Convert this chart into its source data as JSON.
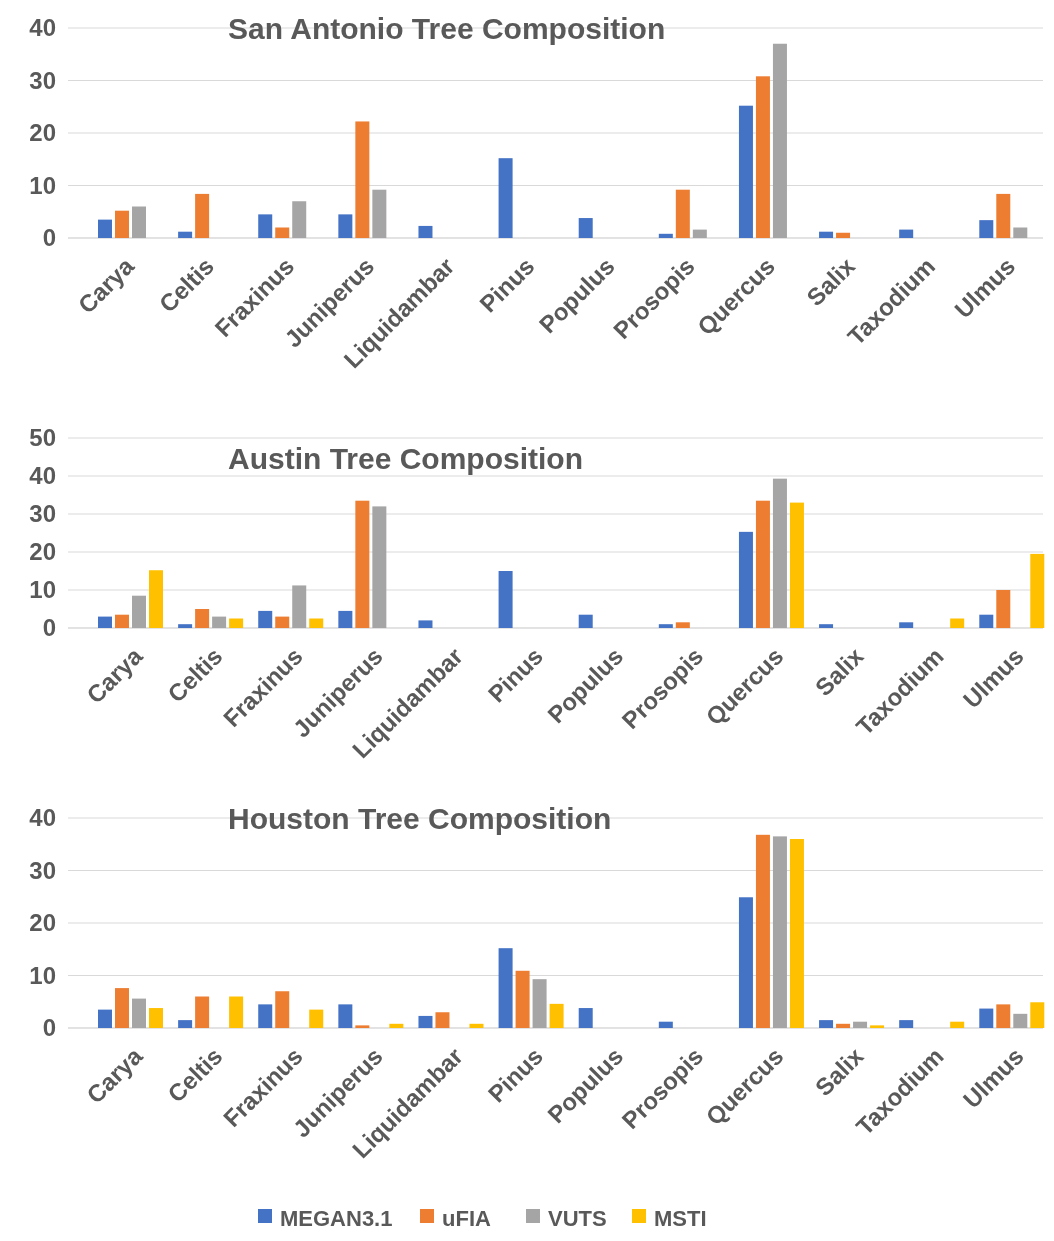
{
  "chart_data": [
    {
      "type": "bar",
      "title": "San Antonio Tree Composition",
      "categories": [
        "Carya",
        "Celtis",
        "Fraxinus",
        "Juniperus",
        "Liquidambar",
        "Pinus",
        "Populus",
        "Prosopis",
        "Quercus",
        "Salix",
        "Taxodium",
        "Ulmus"
      ],
      "ylim": [
        0,
        40
      ],
      "yticks": [
        0,
        10,
        20,
        30,
        40
      ],
      "grid": "y",
      "legend": false,
      "series": [
        {
          "color": "#4472c4",
          "values": [
            3.5,
            1.2,
            4.5,
            4.5,
            2.3,
            15.2,
            3.8,
            0.8,
            25.2,
            1.2,
            1.6,
            3.4
          ]
        },
        {
          "color": "#ed7d31",
          "values": [
            5.2,
            8.4,
            2,
            22.2,
            null,
            null,
            null,
            9.2,
            30.8,
            1,
            null,
            8.4
          ]
        },
        {
          "color": "#a5a5a5",
          "values": [
            6,
            null,
            7,
            9.2,
            null,
            null,
            null,
            1.6,
            37,
            null,
            null,
            2
          ]
        }
      ]
    },
    {
      "type": "bar",
      "title": "Austin Tree Composition",
      "categories": [
        "Carya",
        "Celtis",
        "Fraxinus",
        "Juniperus",
        "Liquidambar",
        "Pinus",
        "Populus",
        "Prosopis",
        "Quercus",
        "Salix",
        "Taxodium",
        "Ulmus"
      ],
      "ylim": [
        0,
        50
      ],
      "yticks": [
        0,
        10,
        20,
        30,
        40,
        50
      ],
      "grid": "y",
      "legend": false,
      "series": [
        {
          "color": "#4472c4",
          "values": [
            3,
            1,
            4.5,
            4.5,
            2,
            15,
            3.5,
            1,
            25.3,
            1,
            1.5,
            3.5
          ]
        },
        {
          "color": "#ed7d31",
          "values": [
            3.5,
            5,
            3,
            33.5,
            null,
            null,
            null,
            1.5,
            33.5,
            null,
            null,
            10
          ]
        },
        {
          "color": "#a5a5a5",
          "values": [
            8.5,
            3,
            11.2,
            32,
            null,
            null,
            null,
            null,
            39.3,
            null,
            null,
            null
          ]
        },
        {
          "color": "#ffc000",
          "values": [
            15.2,
            2.5,
            2.5,
            null,
            null,
            null,
            null,
            null,
            33,
            null,
            2.5,
            19.5
          ]
        }
      ]
    },
    {
      "type": "bar",
      "title": "Houston Tree Composition",
      "categories": [
        "Carya",
        "Celtis",
        "Fraxinus",
        "Juniperus",
        "Liquidambar",
        "Pinus",
        "Populus",
        "Prosopis",
        "Quercus",
        "Salix",
        "Taxodium",
        "Ulmus"
      ],
      "ylim": [
        0,
        40
      ],
      "yticks": [
        0,
        10,
        20,
        30,
        40
      ],
      "grid": "y",
      "legend": "bottom",
      "series": [
        {
          "name": "MEGAN3.1",
          "color": "#4472c4",
          "values": [
            3.5,
            1.5,
            4.5,
            4.5,
            2.3,
            15.2,
            3.8,
            1.2,
            24.9,
            1.5,
            1.5,
            3.7
          ]
        },
        {
          "name": "uFIA",
          "color": "#ed7d31",
          "values": [
            7.6,
            6,
            7,
            0.5,
            3,
            10.9,
            null,
            null,
            36.8,
            0.8,
            null,
            4.5
          ]
        },
        {
          "name": "VUTS",
          "color": "#a5a5a5",
          "values": [
            5.6,
            null,
            null,
            null,
            null,
            9.3,
            null,
            null,
            36.5,
            1.2,
            null,
            2.7
          ]
        },
        {
          "name": "MSTI",
          "color": "#ffc000",
          "values": [
            3.8,
            6,
            3.5,
            0.8,
            0.8,
            4.6,
            null,
            null,
            36,
            0.5,
            1.2,
            4.9
          ]
        }
      ]
    }
  ]
}
